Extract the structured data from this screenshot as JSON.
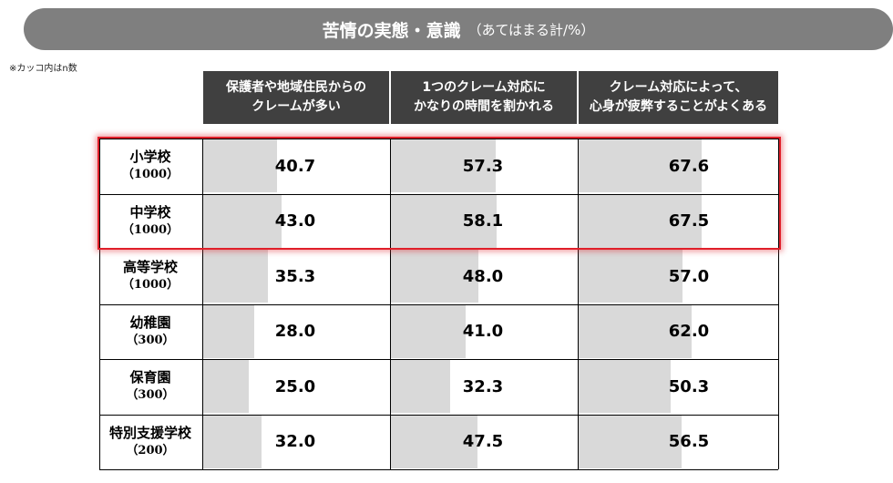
{
  "title": "苦情の実態・意識",
  "subtitle": "（あてはまる計/%）",
  "note": "※カッコ内はn数",
  "chart_data": {
    "type": "table",
    "columns": [
      [
        "保護者や地域住民からの",
        "クレームが多い"
      ],
      [
        "1つのクレーム対応に",
        "かなりの時間を割かれる"
      ],
      [
        "クレーム対応によって、",
        "心身が疲弊することがよくある"
      ]
    ],
    "rows": [
      {
        "name": "小学校",
        "n": "（1000）",
        "values": [
          "40.7",
          "57.3",
          "67.6"
        ]
      },
      {
        "name": "中学校",
        "n": "（1000）",
        "values": [
          "43.0",
          "58.1",
          "67.5"
        ]
      },
      {
        "name": "高等学校",
        "n": "（1000）",
        "values": [
          "35.3",
          "48.0",
          "57.0"
        ]
      },
      {
        "name": "幼稚園",
        "n": "（300）",
        "values": [
          "28.0",
          "41.0",
          "62.0"
        ]
      },
      {
        "name": "保育園",
        "n": "（300）",
        "values": [
          "25.0",
          "32.3",
          "50.3"
        ]
      },
      {
        "name": "特別支援学校",
        "n": "（200）",
        "values": [
          "32.0",
          "47.5",
          "56.5"
        ]
      }
    ],
    "highlighted_rows": [
      "小学校",
      "中学校"
    ],
    "value_range": [
      0,
      100
    ],
    "bar_color": "#d9d9d9",
    "highlight_color": "#e0202a"
  }
}
